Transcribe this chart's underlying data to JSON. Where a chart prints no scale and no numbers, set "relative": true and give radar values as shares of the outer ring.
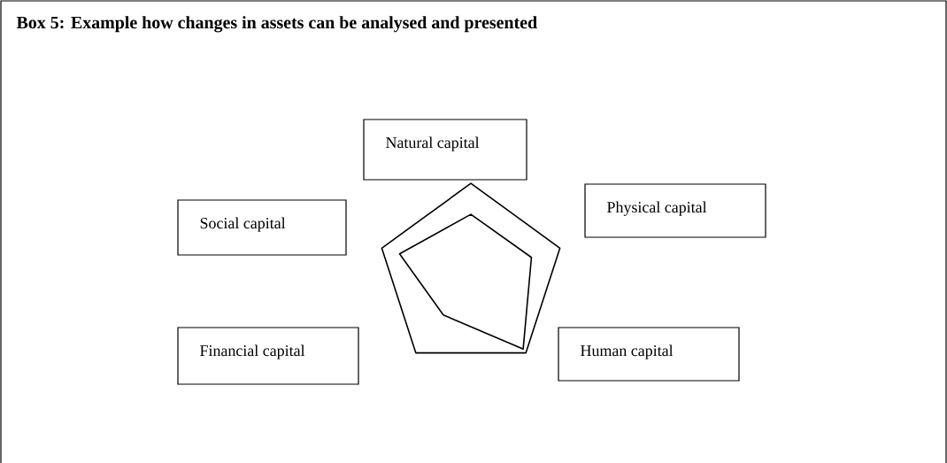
{
  "chart_data": {
    "type": "radar",
    "title": "Box 5: Example how changes in assets can be analysed and presented",
    "categories": [
      "Natural capital",
      "Physical capital",
      "Human capital",
      "Financial capital",
      "Social capital"
    ],
    "relative": true,
    "series": [
      {
        "color": "#000000",
        "values": [
          0.67,
          0.68,
          0.95,
          0.5,
          0.8
        ]
      }
    ]
  }
}
